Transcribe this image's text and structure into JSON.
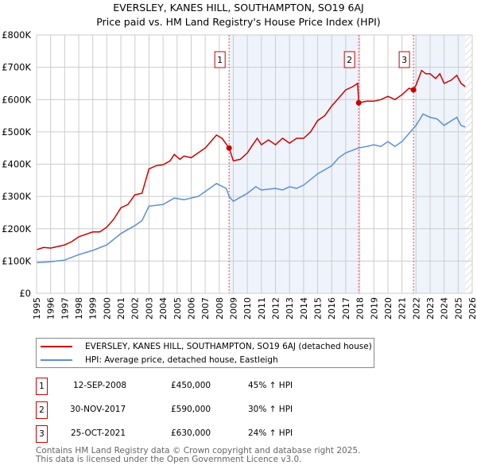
{
  "chart_data": {
    "type": "line",
    "title": "EVERSLEY, KANES HILL, SOUTHAMPTON, SO19 6AJ",
    "subtitle": "Price paid vs. HM Land Registry's House Price Index (HPI)",
    "xlim": [
      1995,
      2026
    ],
    "ylim": [
      0,
      800000
    ],
    "y_ticks": [
      {
        "v": 0,
        "l": "£0"
      },
      {
        "v": 100000,
        "l": "£100K"
      },
      {
        "v": 200000,
        "l": "£200K"
      },
      {
        "v": 300000,
        "l": "£300K"
      },
      {
        "v": 400000,
        "l": "£400K"
      },
      {
        "v": 500000,
        "l": "£500K"
      },
      {
        "v": 600000,
        "l": "£600K"
      },
      {
        "v": 700000,
        "l": "£700K"
      },
      {
        "v": 800000,
        "l": "£800K"
      }
    ],
    "x_ticks": [
      "1995",
      "1996",
      "1997",
      "1998",
      "1999",
      "2000",
      "2001",
      "2002",
      "2003",
      "2004",
      "2005",
      "2006",
      "2007",
      "2008",
      "2009",
      "2010",
      "2011",
      "2012",
      "2013",
      "2014",
      "2015",
      "2016",
      "2017",
      "2018",
      "2019",
      "2020",
      "2021",
      "2022",
      "2023",
      "2024",
      "2025",
      "2026"
    ],
    "grid": true,
    "series": [
      {
        "name": "EVERSLEY, KANES HILL, SOUTHAMPTON, SO19 6AJ (detached house)",
        "color": "#cc0000",
        "x": [
          1995,
          1995.5,
          1996,
          1997,
          1997.5,
          1998,
          1999,
          1999.5,
          2000,
          2000.5,
          2001,
          2001.5,
          2002,
          2002.5,
          2003,
          2003.5,
          2004,
          2004.5,
          2004.8,
          2005.2,
          2005.5,
          2006,
          2006.5,
          2007,
          2007.5,
          2007.8,
          2008.2,
          2008.7,
          2009,
          2009.5,
          2010,
          2010.3,
          2010.7,
          2011,
          2011.5,
          2012,
          2012.5,
          2013,
          2013.5,
          2014,
          2014.5,
          2015,
          2015.5,
          2016,
          2016.5,
          2017,
          2017.5,
          2017.85,
          2017.92,
          2018.5,
          2019,
          2019.5,
          2020,
          2020.5,
          2021,
          2021.5,
          2021.8,
          2022,
          2022.4,
          2022.7,
          2023,
          2023.4,
          2023.7,
          2024,
          2024.5,
          2024.9,
          2025.2,
          2025.5
        ],
        "y": [
          135,
          142,
          140,
          150,
          160,
          175,
          190,
          190,
          205,
          230,
          265,
          275,
          305,
          310,
          385,
          395,
          398,
          410,
          430,
          415,
          425,
          420,
          435,
          450,
          475,
          490,
          480,
          450,
          410,
          415,
          435,
          455,
          480,
          460,
          475,
          460,
          480,
          465,
          480,
          480,
          500,
          535,
          550,
          580,
          605,
          630,
          640,
          650,
          590,
          595,
          595,
          600,
          610,
          600,
          615,
          635,
          630,
          645,
          690,
          680,
          680,
          665,
          680,
          650,
          660,
          675,
          650,
          640
        ]
      },
      {
        "name": "HPI: Average price, detached house, Eastleigh",
        "color": "#5b8fd6",
        "x": [
          1995,
          1996,
          1997,
          1998,
          1999,
          2000,
          2001,
          2002,
          2002.5,
          2003,
          2004,
          2004.8,
          2005.5,
          2006.5,
          2007,
          2007.8,
          2008.5,
          2008.7,
          2009,
          2010,
          2010.6,
          2011,
          2012,
          2012.5,
          2013,
          2013.5,
          2014,
          2015,
          2016,
          2016.5,
          2017,
          2017.9,
          2018.5,
          2019,
          2019.5,
          2020,
          2020.5,
          2021,
          2021.5,
          2022,
          2022.5,
          2023,
          2023.5,
          2024,
          2024.9,
          2025.2,
          2025.5
        ],
        "y": [
          95,
          98,
          103,
          120,
          133,
          150,
          185,
          210,
          225,
          270,
          275,
          295,
          290,
          300,
          315,
          340,
          325,
          300,
          285,
          310,
          330,
          320,
          325,
          320,
          330,
          325,
          335,
          370,
          395,
          420,
          435,
          450,
          455,
          460,
          455,
          470,
          455,
          470,
          495,
          520,
          555,
          545,
          540,
          520,
          545,
          520,
          515
        ]
      }
    ],
    "y_unit": 1000,
    "sales": [
      {
        "n": "1",
        "x": 2008.7,
        "y": 450,
        "date": "12-SEP-2008",
        "price": "£450,000",
        "hpi": "45% ↑ HPI"
      },
      {
        "n": "2",
        "x": 2017.92,
        "y": 590,
        "date": "30-NOV-2017",
        "price": "£590,000",
        "hpi": "30% ↑ HPI"
      },
      {
        "n": "3",
        "x": 2021.82,
        "y": 630,
        "date": "25-OCT-2021",
        "price": "£630,000",
        "hpi": "24% ↑ HPI"
      }
    ],
    "shaded": [
      [
        2008.7,
        2017.92
      ],
      [
        2021.82,
        2025.5
      ]
    ],
    "hatch_from": 2025.5
  },
  "footer": [
    "Contains HM Land Registry data © Crown copyright and database right 2025.",
    "This data is licensed under the Open Government Licence v3.0."
  ]
}
